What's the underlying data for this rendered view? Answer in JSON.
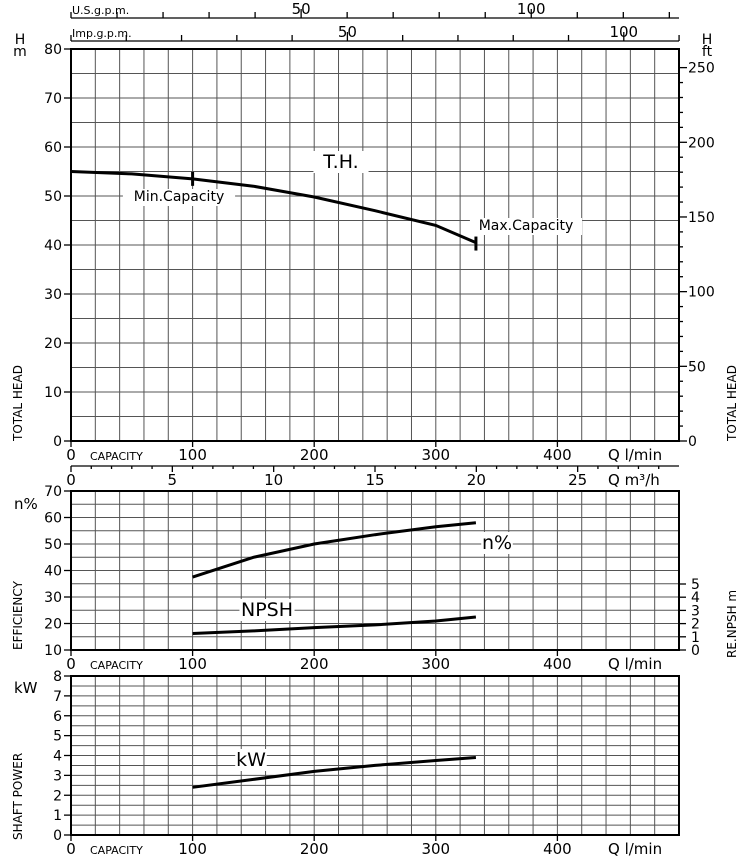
{
  "chart_data": [
    {
      "name": "head",
      "type": "line",
      "top_axes": [
        {
          "label": "U.S.g.p.m.",
          "ticks": [
            {
              "value": 50,
              "label": "50"
            },
            {
              "value": 100,
              "label": "100"
            }
          ],
          "minor_step": 10,
          "lpm_per_unit": 3.785
        },
        {
          "label": "Imp.g.p.m.",
          "ticks": [
            {
              "value": 50,
              "label": "50"
            },
            {
              "value": 100,
              "label": "100"
            }
          ],
          "minor_step": 10,
          "lpm_per_unit": 4.546
        }
      ],
      "y_left": {
        "unit": "H\nm",
        "min": 0,
        "max": 80,
        "ticks": [
          0,
          10,
          20,
          30,
          40,
          50,
          60,
          70,
          80
        ]
      },
      "y_right": {
        "unit": "H\nft",
        "ticks": [
          {
            "value": 0,
            "label": "0"
          },
          {
            "value": 50,
            "label": "50"
          },
          {
            "value": 100,
            "label": "100"
          },
          {
            "value": 150,
            "label": "150"
          },
          {
            "value": 200,
            "label": "200"
          },
          {
            "value": 250,
            "label": "250"
          }
        ]
      },
      "ylabel_left": "TOTAL HEAD",
      "ylabel_right": "TOTAL HEAD",
      "x_label": "CAPACITY",
      "x_ticks": [
        0,
        100,
        200,
        300,
        400
      ],
      "x_unit": "Q l/min",
      "series": [
        {
          "name": "T.H.",
          "x": [
            0,
            50,
            100,
            150,
            200,
            250,
            300,
            333
          ],
          "y": [
            55,
            54.5,
            53.5,
            52,
            49.8,
            47,
            44,
            40.5
          ]
        }
      ],
      "annotations": [
        {
          "text": "Min.Capacity",
          "x": 100,
          "y": 53.5
        },
        {
          "text": "Max.Capacity",
          "x": 333,
          "y": 40.5
        }
      ],
      "curve_label": "T.H."
    },
    {
      "name": "efficiency",
      "type": "line",
      "x_m3h_axis": {
        "ticks": [
          0,
          5,
          10,
          15,
          20,
          25
        ],
        "unit": "Q m³/h"
      },
      "y_left": {
        "unit": "n%",
        "min": 10,
        "max": 70,
        "ticks": [
          10,
          20,
          30,
          40,
          50,
          60,
          70
        ]
      },
      "y_right": {
        "ticks": [
          0,
          1,
          2,
          3,
          4,
          5
        ]
      },
      "ylabel_left": "EFFICIENCY",
      "ylabel_right": "RE.NPSH m",
      "x_label": "CAPACITY",
      "x_ticks": [
        0,
        100,
        200,
        300,
        400
      ],
      "x_unit": "Q l/min",
      "series": [
        {
          "name": "n%",
          "x": [
            100,
            150,
            200,
            250,
            300,
            333
          ],
          "y": [
            37.5,
            45,
            50,
            53.5,
            56.5,
            58
          ]
        },
        {
          "name": "NPSH",
          "x": [
            100,
            150,
            200,
            250,
            300,
            333
          ],
          "y_npsh": [
            1.25,
            1.45,
            1.7,
            1.9,
            2.2,
            2.5
          ]
        }
      ],
      "curve_labels": [
        "n%",
        "NPSH"
      ]
    },
    {
      "name": "power",
      "type": "line",
      "y_left": {
        "unit": "kW",
        "min": 0,
        "max": 8,
        "ticks": [
          0,
          1,
          2,
          3,
          4,
          5,
          6,
          7,
          8
        ]
      },
      "ylabel_left": "SHAFT POWER",
      "x_label": "CAPACITY",
      "x_ticks": [
        0,
        100,
        200,
        300,
        400
      ],
      "x_unit": "Q l/min",
      "series": [
        {
          "name": "kW",
          "x": [
            100,
            150,
            200,
            250,
            300,
            333
          ],
          "y": [
            2.4,
            2.8,
            3.2,
            3.5,
            3.75,
            3.9
          ]
        }
      ],
      "curve_label": "kW"
    }
  ]
}
